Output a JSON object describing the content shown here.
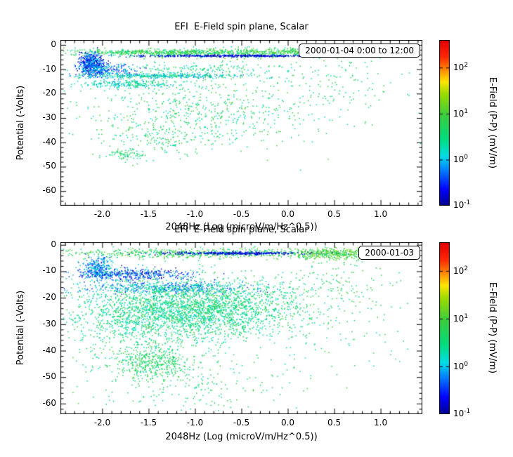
{
  "window": {
    "background": "#ffffff"
  },
  "colormap": [
    [
      0.0,
      0,
      0,
      140
    ],
    [
      0.1,
      0,
      0,
      255
    ],
    [
      0.22,
      0,
      130,
      255
    ],
    [
      0.3,
      0,
      220,
      230
    ],
    [
      0.4,
      0,
      220,
      130
    ],
    [
      0.55,
      60,
      205,
      60
    ],
    [
      0.68,
      160,
      220,
      0
    ],
    [
      0.75,
      255,
      230,
      0
    ],
    [
      0.82,
      255,
      140,
      0
    ],
    [
      0.9,
      255,
      40,
      0
    ],
    [
      1.0,
      225,
      0,
      0
    ]
  ],
  "chart_data": [
    {
      "type": "scatter",
      "title": "EFI  E-Field spin plane, Scalar",
      "annotation": "2000-01-04 0:00 to 12:00",
      "xlabel": "2048Hz (Log (microV/m/Hz^0.5))",
      "ylabel": "Potential (-Volts)",
      "xlim": [
        -2.45,
        1.45
      ],
      "ylim": [
        -66,
        2
      ],
      "xticks": [
        -2.0,
        -1.5,
        -1.0,
        -0.5,
        0.0,
        0.5,
        1.0
      ],
      "xtick_labels": [
        "-2.0",
        "-1.5",
        "-1.0",
        "-0.5",
        "0.0",
        "0.5",
        "1.0"
      ],
      "yticks": [
        0,
        -10,
        -20,
        -30,
        -40,
        -50,
        -60
      ],
      "xtick_minor_step": 0.1,
      "ytick_minor_step": 2,
      "colorbar": {
        "label": "E-Field (P-P) (mV/m)",
        "scale": "log",
        "log10_range": [
          -1,
          2.6
        ],
        "ticks": [
          {
            "log10": -1,
            "exp": "-1"
          },
          {
            "log10": 0,
            "exp": "0"
          },
          {
            "log10": 1,
            "exp": "1"
          },
          {
            "log10": 2,
            "exp": "2"
          }
        ]
      },
      "point_clusters": [
        {
          "cx": -0.85,
          "cy": -3.2,
          "sx": 0.85,
          "sy": 1.0,
          "n": 700,
          "v": [
            0.2,
            1.2
          ]
        },
        {
          "cx": -0.55,
          "cy": -4.3,
          "sx": 0.5,
          "sy": 0.22,
          "n": 420,
          "v": [
            -1.0,
            -0.4
          ]
        },
        {
          "cx": -1.5,
          "cy": -2.8,
          "sx": 0.55,
          "sy": 0.5,
          "n": 260,
          "v": [
            0.4,
            1.2
          ]
        },
        {
          "cx": 0.1,
          "cy": -2.6,
          "sx": 0.45,
          "sy": 0.5,
          "n": 200,
          "v": [
            0.5,
            1.3
          ]
        },
        {
          "cx": -2.12,
          "cy": -7.5,
          "sx": 0.07,
          "sy": 2.2,
          "n": 500,
          "v": [
            -1.0,
            0.2
          ]
        },
        {
          "cx": -1.95,
          "cy": -10.5,
          "sx": 0.18,
          "sy": 1.3,
          "n": 220,
          "v": [
            -0.8,
            0.3
          ]
        },
        {
          "cx": -1.35,
          "cy": -12.6,
          "sx": 0.45,
          "sy": 0.5,
          "n": 380,
          "v": [
            -0.3,
            0.8
          ]
        },
        {
          "cx": -1.75,
          "cy": -15.8,
          "sx": 0.25,
          "sy": 0.9,
          "n": 230,
          "v": [
            -0.2,
            0.7
          ]
        },
        {
          "cx": -1.0,
          "cy": -9.5,
          "sx": 0.5,
          "sy": 1.2,
          "n": 150,
          "v": [
            0.0,
            0.9
          ]
        },
        {
          "cx": -1.0,
          "cy": -28.0,
          "sx": 0.65,
          "sy": 7.0,
          "n": 550,
          "v": [
            0.1,
            1.1
          ]
        },
        {
          "cx": -1.35,
          "cy": -38.0,
          "sx": 0.3,
          "sy": 3.0,
          "n": 120,
          "v": [
            0.2,
            1.0
          ]
        },
        {
          "cx": -1.75,
          "cy": -45.0,
          "sx": 0.12,
          "sy": 1.3,
          "n": 70,
          "v": [
            0.3,
            0.9
          ]
        },
        {
          "cx": 0.5,
          "cy": -14.0,
          "sx": 0.3,
          "sy": 6.0,
          "n": 70,
          "v": [
            0.3,
            1.0
          ]
        },
        {
          "cx": -0.3,
          "cy": -18.0,
          "sx": 1.0,
          "sy": 10.0,
          "n": 200,
          "v": [
            0.2,
            1.0
          ]
        }
      ]
    },
    {
      "type": "scatter",
      "title": "EFI  E-Field spin plane, Scalar",
      "annotation": "2000-01-03",
      "xlabel": "2048Hz (Log (microV/m/Hz^0.5))",
      "ylabel": "Potential (-Volts)",
      "xlim": [
        -2.45,
        1.45
      ],
      "ylim": [
        -64,
        1
      ],
      "xticks": [
        -2.0,
        -1.5,
        -1.0,
        -0.5,
        0.0,
        0.5,
        1.0
      ],
      "xtick_labels": [
        "-2.0",
        "-1.5",
        "-1.0",
        "-0.5",
        "0.0",
        "0.5",
        "1.0"
      ],
      "yticks": [
        0,
        -10,
        -20,
        -30,
        -40,
        -50,
        -60
      ],
      "xtick_minor_step": 0.1,
      "ytick_minor_step": 2,
      "colorbar": {
        "label": "E-Field (P-P) (mV/m)",
        "scale": "log",
        "log10_range": [
          -1,
          2.6
        ],
        "ticks": [
          {
            "log10": -1,
            "exp": "-1"
          },
          {
            "log10": 0,
            "exp": "0"
          },
          {
            "log10": 1,
            "exp": "1"
          },
          {
            "log10": 2,
            "exp": "2"
          }
        ]
      },
      "point_clusters": [
        {
          "cx": -0.9,
          "cy": -3.0,
          "sx": 0.95,
          "sy": 0.9,
          "n": 700,
          "v": [
            0.3,
            1.3
          ]
        },
        {
          "cx": -0.5,
          "cy": -3.0,
          "sx": 0.4,
          "sy": 0.25,
          "n": 320,
          "v": [
            -1.0,
            -0.4
          ]
        },
        {
          "cx": 0.45,
          "cy": -3.2,
          "sx": 0.22,
          "sy": 1.1,
          "n": 320,
          "v": [
            0.6,
            1.4
          ]
        },
        {
          "cx": -2.05,
          "cy": -8.5,
          "sx": 0.08,
          "sy": 2.4,
          "n": 280,
          "v": [
            -0.6,
            0.4
          ]
        },
        {
          "cx": -1.7,
          "cy": -11.0,
          "sx": 0.32,
          "sy": 1.1,
          "n": 420,
          "v": [
            -1.0,
            0.2
          ]
        },
        {
          "cx": -1.3,
          "cy": -16.0,
          "sx": 0.5,
          "sy": 1.2,
          "n": 500,
          "v": [
            -0.6,
            0.5
          ]
        },
        {
          "cx": -1.15,
          "cy": -25.0,
          "sx": 0.55,
          "sy": 5.5,
          "n": 2200,
          "v": [
            0.0,
            1.0
          ]
        },
        {
          "cx": -0.55,
          "cy": -22.0,
          "sx": 0.5,
          "sy": 5.0,
          "n": 500,
          "v": [
            0.1,
            1.0
          ]
        },
        {
          "cx": -1.45,
          "cy": -44.0,
          "sx": 0.22,
          "sy": 3.5,
          "n": 450,
          "v": [
            0.3,
            1.1
          ]
        },
        {
          "cx": -1.1,
          "cy": -54.0,
          "sx": 0.5,
          "sy": 4.0,
          "n": 160,
          "v": [
            0.3,
            1.0
          ]
        },
        {
          "cx": 0.5,
          "cy": -15.0,
          "sx": 0.3,
          "sy": 7.0,
          "n": 130,
          "v": [
            0.4,
            1.1
          ]
        },
        {
          "cx": -0.5,
          "cy": -30.0,
          "sx": 1.0,
          "sy": 12.0,
          "n": 350,
          "v": [
            0.2,
            1.0
          ]
        },
        {
          "cx": -1.9,
          "cy": -30.0,
          "sx": 0.25,
          "sy": 8.0,
          "n": 200,
          "v": [
            0.2,
            0.9
          ]
        }
      ]
    }
  ]
}
